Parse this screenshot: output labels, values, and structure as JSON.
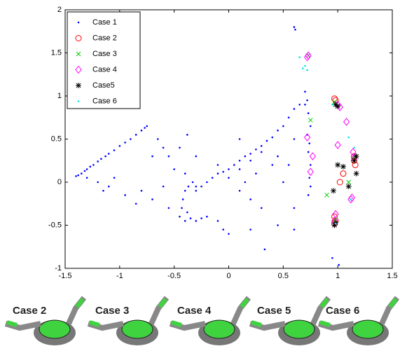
{
  "chart_data": {
    "type": "scatter",
    "xlim": [
      -1.5,
      1.5
    ],
    "xticks": [
      -1.5,
      -1,
      -0.5,
      0,
      0.5,
      1,
      1.5
    ],
    "ylim": [
      -1,
      2
    ],
    "yticks": [
      -1,
      -0.5,
      0,
      0.5,
      1,
      1.5,
      2
    ],
    "legend": "upper left",
    "series": [
      {
        "name": "Case 1",
        "color": "#0000ff",
        "marker": "dot",
        "x": [
          -1.4,
          -1.38,
          -1.35,
          -1.32,
          -1.3,
          -1.27,
          -1.24,
          -1.2,
          -1.17,
          -1.13,
          -1.1,
          -1.05,
          -1.0,
          -0.95,
          -0.9,
          -0.85,
          -0.8,
          -0.77,
          -0.75,
          -1.3,
          -1.2,
          -1.15,
          -1.1,
          -1.05,
          -0.95,
          -0.85,
          -0.8,
          -0.7,
          -0.65,
          -0.6,
          -0.55,
          -0.5,
          -0.45,
          -0.38,
          -0.3,
          -0.2,
          -0.1,
          -0.05,
          0.0,
          -0.6,
          -0.7,
          -0.55,
          -0.4,
          -0.45,
          -0.43,
          -0.42,
          -0.4,
          -0.37,
          -0.33,
          -0.3,
          -0.38,
          -0.35,
          -0.3,
          -0.25,
          -0.4,
          -0.3,
          -0.25,
          -0.2,
          -0.15,
          -0.1,
          -0.05,
          0.0,
          0.05,
          0.1,
          0.15,
          0.2,
          0.25,
          0.3,
          0.35,
          0.4,
          0.45,
          0.5,
          0.55,
          -0.1,
          0.0,
          0.1,
          0.2,
          0.3,
          0.15,
          0.25,
          0.4,
          0.45,
          0.1,
          0.2,
          0.3,
          0.5,
          0.55,
          0.6,
          0.6,
          0.33,
          0.2,
          0.1,
          0.45,
          0.7,
          0.72,
          0.7,
          0.73,
          0.75,
          0.72,
          0.74,
          0.73,
          0.75,
          0.74,
          0.75,
          0.65,
          0.6,
          0.6,
          0.61,
          0.95,
          1.01,
          0.73,
          0.6
        ],
        "y": [
          0.07,
          0.08,
          0.1,
          0.13,
          0.15,
          0.18,
          0.2,
          0.24,
          0.27,
          0.3,
          0.33,
          0.37,
          0.42,
          0.46,
          0.5,
          0.55,
          0.6,
          0.63,
          0.65,
          0.05,
          0.0,
          -0.1,
          -0.05,
          0.05,
          -0.15,
          -0.25,
          -0.1,
          0.3,
          0.5,
          0.4,
          0.3,
          0.15,
          0.4,
          0.55,
          0.3,
          -0.4,
          -0.45,
          -0.55,
          -0.6,
          -0.05,
          -0.2,
          -0.3,
          0.1,
          -0.4,
          -0.3,
          -0.2,
          -0.1,
          -0.05,
          0.0,
          -0.05,
          -0.35,
          -0.42,
          -0.45,
          -0.42,
          -0.45,
          -0.1,
          -0.05,
          0.0,
          0.05,
          0.1,
          0.12,
          0.15,
          0.2,
          0.25,
          0.3,
          0.33,
          0.38,
          0.42,
          0.48,
          0.52,
          0.6,
          0.65,
          0.75,
          0.2,
          0.05,
          0.15,
          0.25,
          0.35,
          0.0,
          0.1,
          0.2,
          0.3,
          -0.1,
          -0.2,
          -0.3,
          0.0,
          0.2,
          -0.3,
          0.5,
          -0.78,
          -0.55,
          0.5,
          -0.5,
          1.05,
          0.95,
          0.9,
          0.8,
          0.65,
          0.55,
          0.45,
          0.35,
          0.2,
          0.05,
          -0.05,
          0.9,
          0.85,
          1.8,
          1.77,
          -0.88,
          -0.96,
          -0.15,
          -0.55
        ]
      },
      {
        "name": "Case 2",
        "color": "#ff0000",
        "marker": "circle",
        "x": [
          0.97,
          0.98,
          1.05,
          1.02,
          1.15,
          1.15,
          1.16,
          0.97,
          0.98,
          0.97
        ],
        "y": [
          0.97,
          0.95,
          0.1,
          0.0,
          0.3,
          0.25,
          0.2,
          -0.4,
          -0.45,
          -0.48
        ]
      },
      {
        "name": "Case 3",
        "color": "#00cc00",
        "marker": "x",
        "x": [
          0.75,
          0.97,
          0.9,
          1.1,
          1.15,
          0.98,
          0.73
        ],
        "y": [
          0.72,
          0.93,
          -0.15,
          0.0,
          0.3,
          -0.43,
          1.47
        ]
      },
      {
        "name": "Case 4",
        "color": "#ff00ff",
        "marker": "diamond",
        "x": [
          0.72,
          0.73,
          0.72,
          0.77,
          0.75,
          1.0,
          1.02,
          1.08,
          1.0,
          1.13,
          1.12,
          1.14,
          1.15,
          0.98,
          0.97
        ],
        "y": [
          1.45,
          1.47,
          0.52,
          0.3,
          0.12,
          0.9,
          0.87,
          0.7,
          0.43,
          -0.18,
          -0.2,
          0.35,
          0.28,
          -0.37,
          -0.45
        ]
      },
      {
        "name": "Case5",
        "color": "#000000",
        "marker": "asterisk",
        "x": [
          0.98,
          1.0,
          1.0,
          1.05,
          1.17,
          0.96,
          1.1,
          1.15,
          1.17,
          0.98,
          0.97
        ],
        "y": [
          0.9,
          0.88,
          0.2,
          0.18,
          0.1,
          -0.1,
          -0.05,
          0.25,
          0.3,
          -0.47,
          -0.5
        ]
      },
      {
        "name": "Case 6",
        "color": "#00e5e5",
        "marker": "dot",
        "x": [
          0.65,
          0.7,
          0.72,
          0.68,
          0.95,
          1.1,
          1.15,
          0.98,
          1.12
        ],
        "y": [
          1.45,
          1.35,
          1.3,
          1.32,
          0.9,
          0.52,
          0.4,
          -0.48,
          -0.2
        ]
      }
    ],
    "panel_labels": [
      "Case 2",
      "Case 3",
      "Case 4",
      "Case 5",
      "Case 6"
    ]
  }
}
